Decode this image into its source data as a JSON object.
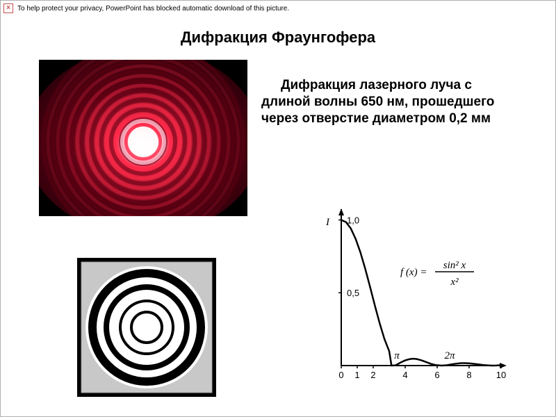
{
  "privacy_bar": {
    "icon_glyph": "×",
    "text": "To help protect your privacy, PowerPoint has blocked automatic download of this picture."
  },
  "title": "Дифракция Фраунгофера",
  "body_text": "Дифракция лазерного луча с длиной волны 650 нм, прошедшего через отверстие диаметром 0,2 мм",
  "laser_photo": {
    "background": "#000000",
    "center_glow": "#ffffff",
    "inner_glow": "#ffc0d0",
    "mid": "#ff2a4a",
    "dark_ring": "#5a0012",
    "outer": "#1a0006",
    "ring_count": 9
  },
  "airy_schematic": {
    "background": "#ffffff",
    "ring_color": "#000000",
    "frame_fill": "#c8c8c8",
    "rings_radii": [
      22,
      38,
      58,
      78
    ],
    "rings_stroke": [
      4,
      4,
      8,
      12
    ]
  },
  "intensity_graph": {
    "axis_color": "#000000",
    "curve_color": "#000000",
    "y_label": "I",
    "y_ticks": [
      {
        "v": 1.0,
        "label": "1,0"
      },
      {
        "v": 0.5,
        "label": "0,5"
      }
    ],
    "x_ticks": [
      {
        "v": 0,
        "label": "0"
      },
      {
        "v": 1,
        "label": "1"
      },
      {
        "v": 2,
        "label": "2"
      },
      {
        "v": 4,
        "label": "4"
      },
      {
        "v": 6,
        "label": "6"
      },
      {
        "v": 8,
        "label": "8"
      },
      {
        "v": 10,
        "label": "10"
      }
    ],
    "pi_marks": [
      {
        "v": 3.1416,
        "label": "π"
      },
      {
        "v": 6.2832,
        "label": "2π"
      }
    ],
    "formula_lhs": "f (x) =",
    "formula_num": "sin² x",
    "formula_den": "x²",
    "xlim": [
      0,
      10
    ],
    "ylim": [
      0,
      1.05
    ],
    "curve": [
      [
        0.0,
        1.0
      ],
      [
        0.3,
        0.985
      ],
      [
        0.6,
        0.941
      ],
      [
        0.9,
        0.87
      ],
      [
        1.2,
        0.777
      ],
      [
        1.5,
        0.665
      ],
      [
        1.8,
        0.541
      ],
      [
        2.1,
        0.414
      ],
      [
        2.4,
        0.292
      ],
      [
        2.7,
        0.183
      ],
      [
        3.0,
        0.0988
      ],
      [
        3.1416,
        0.0
      ],
      [
        3.4,
        0.0019
      ],
      [
        3.7,
        0.02
      ],
      [
        4.0,
        0.0358
      ],
      [
        4.3,
        0.045
      ],
      [
        4.493,
        0.0472
      ],
      [
        4.7,
        0.0452
      ],
      [
        5.0,
        0.0368
      ],
      [
        5.3,
        0.0247
      ],
      [
        5.6,
        0.0126
      ],
      [
        5.9,
        0.0037
      ],
      [
        6.2832,
        0.0
      ],
      [
        6.6,
        0.0022
      ],
      [
        6.9,
        0.0085
      ],
      [
        7.2,
        0.0134
      ],
      [
        7.5,
        0.0165
      ],
      [
        7.725,
        0.0168
      ],
      [
        8.0,
        0.0155
      ],
      [
        8.3,
        0.0121
      ],
      [
        8.6,
        0.0078
      ],
      [
        8.9,
        0.0039
      ],
      [
        9.2,
        0.0012
      ],
      [
        9.4248,
        0.0
      ],
      [
        9.7,
        0.0005
      ],
      [
        10.0,
        0.003
      ]
    ]
  }
}
